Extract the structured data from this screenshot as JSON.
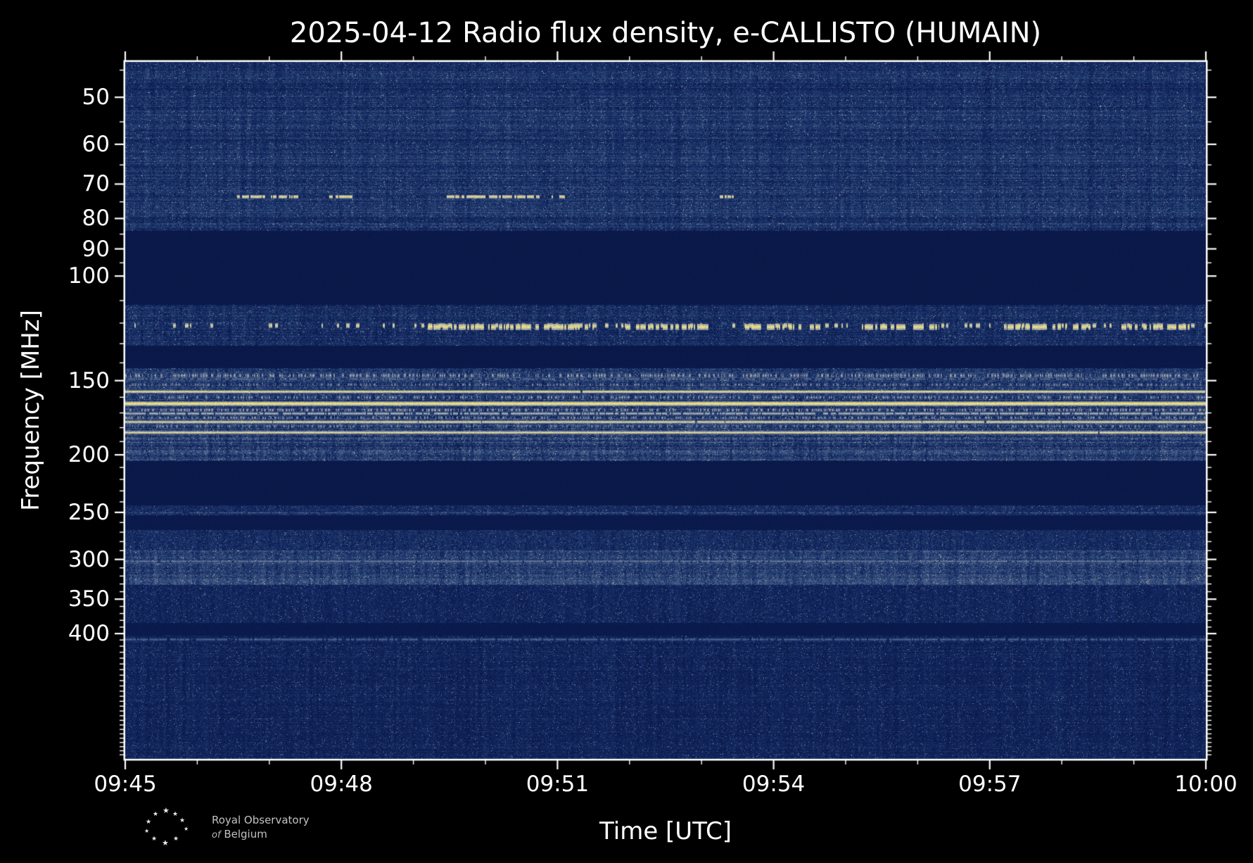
{
  "chart": {
    "title": "2025-04-12 Radio flux density, e-CALLISTO (HUMAIN)",
    "xlabel": "Time [UTC]",
    "ylabel": "Frequency [MHz]"
  },
  "logo": {
    "star_glyph": "★",
    "line1": "Royal Observatory",
    "line2_italic": "of",
    "line2_rest": "Belgium"
  },
  "colors": {
    "background": "#000000",
    "frame": "#ffffff",
    "text": "#ffffff",
    "burst_yellow": "#ffee50",
    "plot_dark_blue": "#0b1b4e"
  },
  "chart_data": {
    "type": "heatmap",
    "subtype": "radio-spectrogram",
    "title": "2025-04-12 Radio flux density, e-CALLISTO (HUMAIN)",
    "xlabel": "Time [UTC]",
    "ylabel": "Frequency [MHz]",
    "x_ticks": [
      "09:45",
      "09:48",
      "09:51",
      "09:54",
      "09:57",
      "10:00"
    ],
    "x_tick_minutes": [
      0,
      3,
      6,
      9,
      12,
      15
    ],
    "x_range_minutes": [
      0,
      15
    ],
    "y_scale": "log",
    "y_axis_inverted_low_at_top": true,
    "y_ticks": [
      50,
      60,
      70,
      80,
      90,
      100,
      150,
      200,
      250,
      300,
      350,
      400
    ],
    "y_range": [
      43.6,
      650
    ],
    "grid": false,
    "legend": "none",
    "colormap": {
      "stops": [
        [
          0.0,
          "#081540"
        ],
        [
          0.12,
          "#0d2058"
        ],
        [
          0.3,
          "#2a4678"
        ],
        [
          0.5,
          "#6b7795"
        ],
        [
          0.7,
          "#b9b9ae"
        ],
        [
          0.85,
          "#e8dc77"
        ],
        [
          1.0,
          "#ffee50"
        ]
      ]
    },
    "bands": [
      {
        "f0": 43.6,
        "f1": 84,
        "base": 0.2,
        "noise": 0.13,
        "h": 0.35,
        "v": 0.3
      },
      {
        "f0": 84,
        "f1": 112,
        "base": 0.045,
        "noise": 0.015
      },
      {
        "f0": 112,
        "f1": 131,
        "base": 0.17,
        "noise": 0.12,
        "h": 0.3,
        "v": 0.35
      },
      {
        "f0": 131,
        "f1": 143,
        "base": 0.045,
        "noise": 0.015
      },
      {
        "f0": 143,
        "f1": 205,
        "base": 0.24,
        "noise": 0.16,
        "h": 0.35,
        "v": 0.4
      },
      {
        "f0": 205,
        "f1": 244,
        "base": 0.045,
        "noise": 0.015
      },
      {
        "f0": 244,
        "f1": 253,
        "base": 0.17,
        "noise": 0.12,
        "v": 0.3
      },
      {
        "f0": 253,
        "f1": 268,
        "base": 0.055,
        "noise": 0.02
      },
      {
        "f0": 268,
        "f1": 290,
        "base": 0.17,
        "noise": 0.12,
        "v": 0.3
      },
      {
        "f0": 290,
        "f1": 332,
        "base": 0.26,
        "noise": 0.15,
        "h": 0.3,
        "v": 0.35
      },
      {
        "f0": 332,
        "f1": 384,
        "base": 0.14,
        "noise": 0.1,
        "v": 0.3
      },
      {
        "f0": 384,
        "f1": 404,
        "base": 0.06,
        "noise": 0.03
      },
      {
        "f0": 404,
        "f1": 650,
        "base": 0.13,
        "noise": 0.1,
        "h": 0.25,
        "v": 0.35
      }
    ],
    "lines": [
      {
        "f": 64,
        "hw": 1,
        "intensity": 0.3,
        "gap": 0.55
      },
      {
        "f": 71,
        "hw": 1,
        "intensity": 0.34,
        "gap": 0.5
      },
      {
        "f": 78,
        "hw": 1,
        "intensity": 0.32,
        "gap": 0.5
      },
      {
        "f": 149,
        "hw": 1,
        "intensity": 0.55,
        "gap": 0.5
      },
      {
        "f": 156.5,
        "hw": 2,
        "intensity": 0.92,
        "gap": 0.1
      },
      {
        "f": 164,
        "hw": 3,
        "intensity": 1.0,
        "gap": 0.02
      },
      {
        "f": 170,
        "hw": 2,
        "intensity": 0.72,
        "gap": 0.35
      },
      {
        "f": 176,
        "hw": 2,
        "intensity": 0.88,
        "gap": 0.15
      },
      {
        "f": 183,
        "hw": 2,
        "intensity": 0.9,
        "gap": 0.12
      },
      {
        "f": 250,
        "hw": 1,
        "intensity": 0.4,
        "gap": 0.45
      },
      {
        "f": 302,
        "hw": 2,
        "intensity": 0.5,
        "gap": 0.35
      },
      {
        "f": 409,
        "hw": 2,
        "intensity": 0.42,
        "gap": 0.4
      }
    ],
    "speckle_lines": [
      {
        "f": 147,
        "hw": 3,
        "density": 0.4,
        "intensity": 0.72
      },
      {
        "f": 152,
        "hw": 2,
        "density": 0.3,
        "intensity": 0.62
      },
      {
        "f": 160,
        "hw": 2,
        "density": 0.33,
        "intensity": 0.7
      },
      {
        "f": 168,
        "hw": 2,
        "density": 0.38,
        "intensity": 0.74
      },
      {
        "f": 173,
        "hw": 2,
        "density": 0.33,
        "intensity": 0.68
      },
      {
        "f": 179,
        "hw": 2,
        "density": 0.3,
        "intensity": 0.64
      },
      {
        "f": 188,
        "hw": 2,
        "density": 0.24,
        "intensity": 0.5
      },
      {
        "f": 196,
        "hw": 2,
        "density": 0.18,
        "intensity": 0.42
      },
      {
        "f": 120,
        "hw": 2,
        "density": 0.1,
        "intensity": 0.45
      },
      {
        "f": 124,
        "hw": 2,
        "density": 0.08,
        "intensity": 0.4
      }
    ],
    "bursts": [
      {
        "f": 73.5,
        "hw": 2,
        "intensity": 0.95,
        "density": 0.65,
        "segments": [
          [
            1.55,
            2.4
          ],
          [
            2.8,
            3.15
          ],
          [
            4.45,
            5.0
          ],
          [
            5.05,
            5.75
          ],
          [
            5.9,
            6.1
          ],
          [
            8.25,
            8.45
          ]
        ]
      },
      {
        "f": 121,
        "hw": 3,
        "intensity": 0.92,
        "density": 0.16,
        "segments": [
          [
            0,
            15
          ]
        ]
      },
      {
        "f": 121.5,
        "hw": 4,
        "intensity": 0.95,
        "density": 0.5,
        "segments": [
          [
            4.2,
            6.5
          ],
          [
            6.9,
            8.1
          ],
          [
            8.6,
            9.7
          ],
          [
            10.2,
            11.3
          ],
          [
            12.2,
            13.4
          ],
          [
            13.8,
            14.8
          ]
        ]
      }
    ]
  }
}
